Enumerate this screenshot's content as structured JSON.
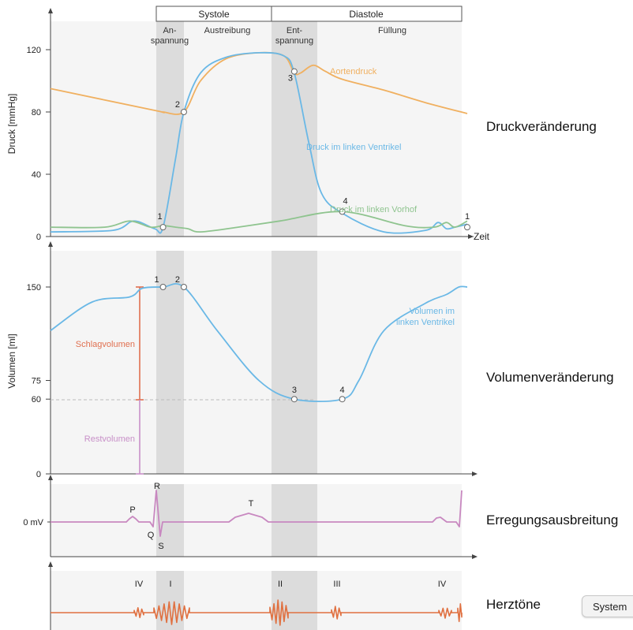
{
  "phases": {
    "systole": "Systole",
    "diastole": "Diastole",
    "anspannung_1": "An-",
    "anspannung_2": "spannung",
    "austreibung": "Austreibung",
    "entspannung_1": "Ent-",
    "entspannung_2": "spannung",
    "fuellung": "Füllung"
  },
  "section_titles": {
    "pressure": "Druckveränderung",
    "volume": "Volumenveränderung",
    "ecg": "Erregungsausbreitung",
    "sounds": "Herztöne"
  },
  "system_button": "System",
  "colors": {
    "aorta": "#f0b060",
    "ventricle": "#6ab8e6",
    "atrium": "#8fc48f",
    "ecg": "#c888c0",
    "sounds": "#e07040",
    "stroke_volume": "#e07050",
    "rest_volume": "#c890c8",
    "shade": "#dcdcdc",
    "panel": "#f5f5f5"
  },
  "chart_data": [
    {
      "type": "line",
      "ylabel": "Druck [mmHg]",
      "xlabel": "Zeit",
      "ylim": [
        0,
        140
      ],
      "yticks": [
        0,
        40,
        80,
        120
      ],
      "series": [
        {
          "name": "Aortendruck",
          "points": [
            [
              0,
              95
            ],
            [
              0.25,
              81
            ],
            [
              0.27,
              80
            ],
            [
              0.32,
              80
            ],
            [
              0.36,
              100
            ],
            [
              0.42,
              114
            ],
            [
              0.5,
              118
            ],
            [
              0.56,
              116
            ],
            [
              0.585,
              105
            ],
            [
              0.6,
              105
            ],
            [
              0.63,
              110
            ],
            [
              0.66,
              106
            ],
            [
              0.7,
              101
            ],
            [
              0.8,
              94
            ],
            [
              0.9,
              86
            ],
            [
              1.0,
              79
            ]
          ]
        },
        {
          "name": "Druck im linken Ventrikel",
          "points": [
            [
              0,
              3
            ],
            [
              0.15,
              4
            ],
            [
              0.2,
              10
            ],
            [
              0.25,
              5
            ],
            [
              0.27,
              6
            ],
            [
              0.3,
              50
            ],
            [
              0.32,
              80
            ],
            [
              0.36,
              105
            ],
            [
              0.42,
              115
            ],
            [
              0.5,
              118
            ],
            [
              0.56,
              116
            ],
            [
              0.585,
              105
            ],
            [
              0.62,
              60
            ],
            [
              0.65,
              28
            ],
            [
              0.7,
              15
            ],
            [
              0.8,
              3
            ],
            [
              0.9,
              4
            ],
            [
              0.93,
              9
            ],
            [
              0.95,
              5
            ],
            [
              0.97,
              6
            ],
            [
              1.0,
              8
            ]
          ]
        },
        {
          "name": "Druck im linken Vorhof",
          "points": [
            [
              0,
              6
            ],
            [
              0.13,
              6
            ],
            [
              0.19,
              10
            ],
            [
              0.24,
              6
            ],
            [
              0.27,
              7
            ],
            [
              0.3,
              6
            ],
            [
              0.33,
              5
            ],
            [
              0.36,
              3
            ],
            [
              0.45,
              6
            ],
            [
              0.55,
              10
            ],
            [
              0.7,
              16
            ],
            [
              0.85,
              7
            ],
            [
              0.92,
              6
            ],
            [
              0.95,
              9
            ],
            [
              0.97,
              6
            ],
            [
              1.0,
              10
            ]
          ]
        }
      ],
      "markers": [
        {
          "label": "1",
          "x": 0.27,
          "y": 6
        },
        {
          "label": "2",
          "x": 0.32,
          "y": 80
        },
        {
          "label": "3",
          "x": 0.585,
          "y": 106
        },
        {
          "label": "4",
          "x": 0.7,
          "y": 16
        },
        {
          "label": "1",
          "x": 1.0,
          "y": 6
        }
      ]
    },
    {
      "type": "line",
      "ylabel": "Volumen [ml]",
      "ylim": [
        0,
        170
      ],
      "yticks": [
        0,
        60,
        75,
        150
      ],
      "series": [
        {
          "name": "Volumen im linken Ventrikel",
          "points": [
            [
              0,
              115
            ],
            [
              0.1,
              138
            ],
            [
              0.19,
              142
            ],
            [
              0.22,
              149
            ],
            [
              0.27,
              150
            ],
            [
              0.32,
              150
            ],
            [
              0.4,
              115
            ],
            [
              0.5,
              75
            ],
            [
              0.585,
              60
            ],
            [
              0.7,
              60
            ],
            [
              0.74,
              75
            ],
            [
              0.8,
              115
            ],
            [
              0.9,
              137
            ],
            [
              0.95,
              144
            ],
            [
              0.98,
              150
            ],
            [
              1.0,
              150
            ]
          ]
        }
      ],
      "markers": [
        {
          "label": "1",
          "x": 0.27,
          "y": 150
        },
        {
          "label": "2",
          "x": 0.32,
          "y": 150
        },
        {
          "label": "3",
          "x": 0.585,
          "y": 60
        },
        {
          "label": "4",
          "x": 0.7,
          "y": 60
        }
      ],
      "annotations": [
        {
          "label": "Schlagvolumen",
          "from": 60,
          "to": 150
        },
        {
          "label": "Restvolumen",
          "from": 0,
          "to": 60
        }
      ]
    },
    {
      "type": "line",
      "ylabel": "0 mV",
      "waves": [
        "P",
        "Q",
        "R",
        "S",
        "T"
      ]
    },
    {
      "type": "line",
      "sounds": [
        "IV",
        "I",
        "II",
        "III",
        "IV"
      ]
    }
  ]
}
